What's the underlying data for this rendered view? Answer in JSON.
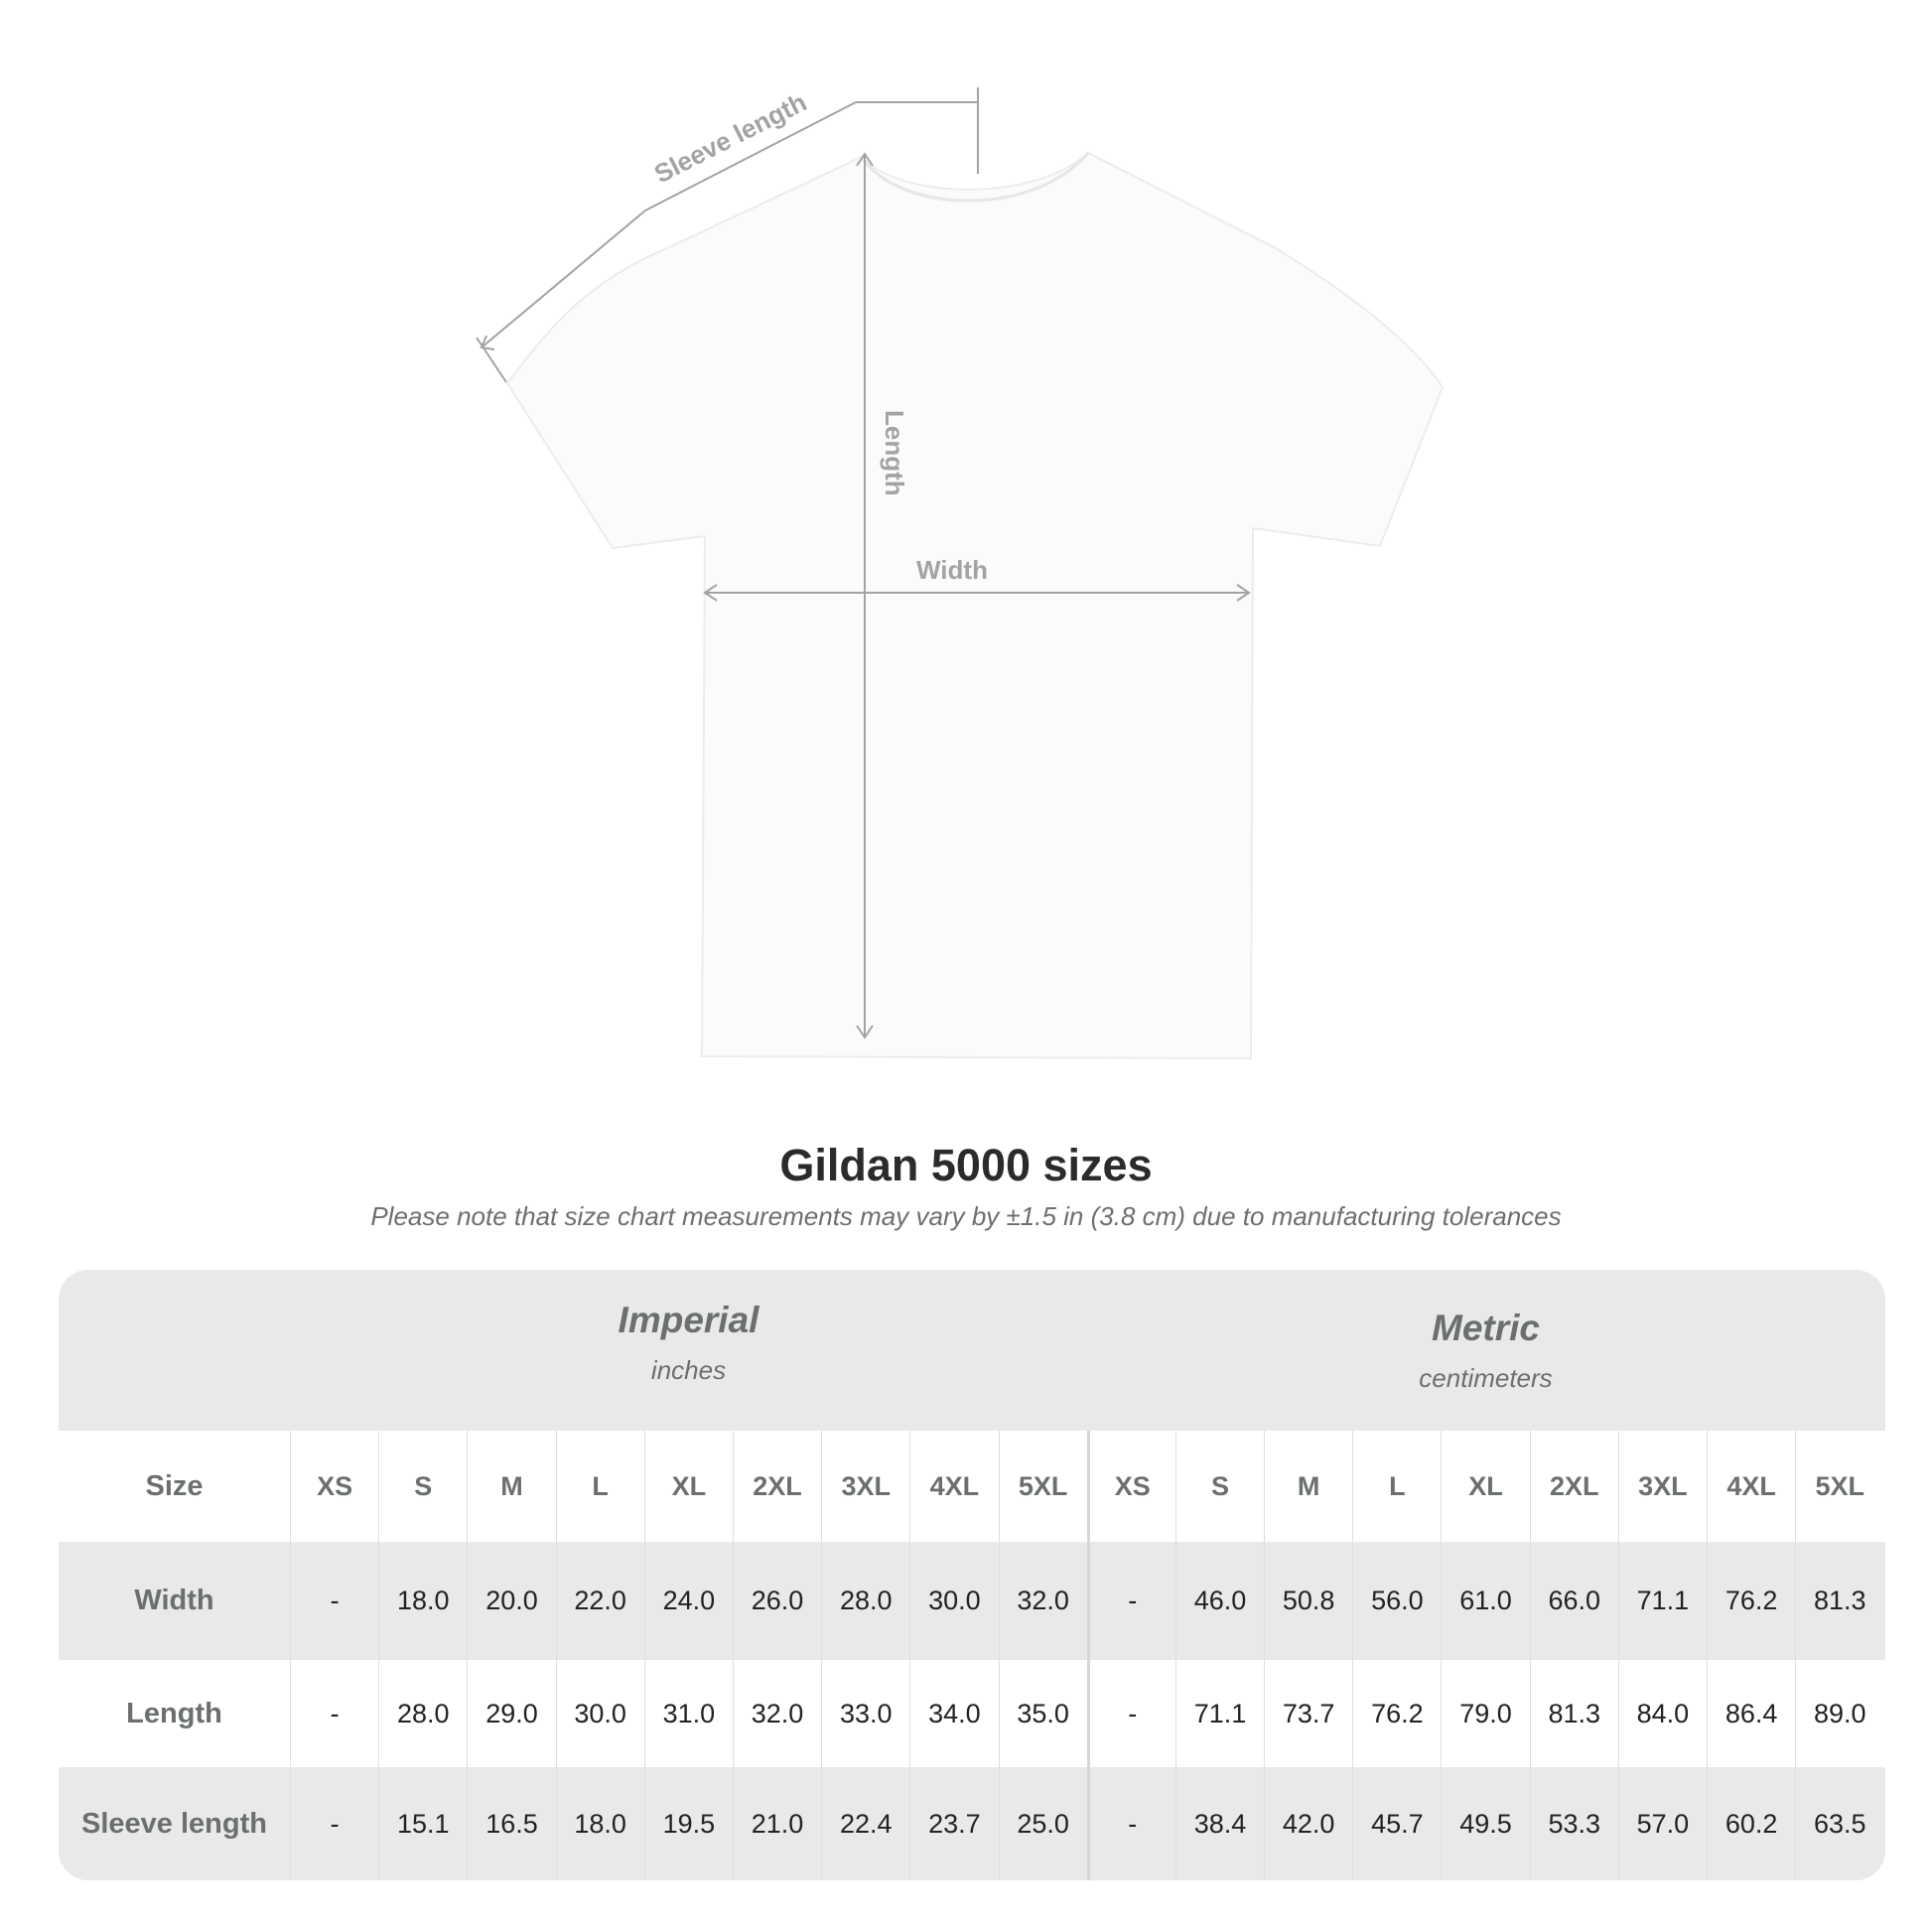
{
  "diagram": {
    "labels": {
      "sleeve_length": "Sleeve length",
      "length": "Length",
      "width": "Width"
    }
  },
  "title": "Gildan 5000 sizes",
  "subtitle": "Please note that size chart measurements may vary by ±1.5 in (3.8 cm) due to manufacturing tolerances",
  "table": {
    "imperial": {
      "label": "Imperial",
      "unit": "inches"
    },
    "metric": {
      "label": "Metric",
      "unit": "centimeters"
    },
    "size_label": "Size",
    "sizes": [
      "XS",
      "S",
      "M",
      "L",
      "XL",
      "2XL",
      "3XL",
      "4XL",
      "5XL"
    ],
    "rows": [
      {
        "label": "Width",
        "imperial": [
          "-",
          "18.0",
          "20.0",
          "22.0",
          "24.0",
          "26.0",
          "28.0",
          "30.0",
          "32.0"
        ],
        "metric": [
          "-",
          "46.0",
          "50.8",
          "56.0",
          "61.0",
          "66.0",
          "71.1",
          "76.2",
          "81.3"
        ]
      },
      {
        "label": "Length",
        "imperial": [
          "-",
          "28.0",
          "29.0",
          "30.0",
          "31.0",
          "32.0",
          "33.0",
          "34.0",
          "35.0"
        ],
        "metric": [
          "-",
          "71.1",
          "73.7",
          "76.2",
          "79.0",
          "81.3",
          "84.0",
          "86.4",
          "89.0"
        ]
      },
      {
        "label": "Sleeve length",
        "imperial": [
          "-",
          "15.1",
          "16.5",
          "18.0",
          "19.5",
          "21.0",
          "22.4",
          "23.7",
          "25.0"
        ],
        "metric": [
          "-",
          "38.4",
          "42.0",
          "45.7",
          "49.5",
          "53.3",
          "57.0",
          "60.2",
          "63.5"
        ]
      }
    ]
  },
  "colors": {
    "band": "#e9e9e9",
    "header_text": "#6b6f70",
    "measure_lines": "#a3a3a3"
  }
}
